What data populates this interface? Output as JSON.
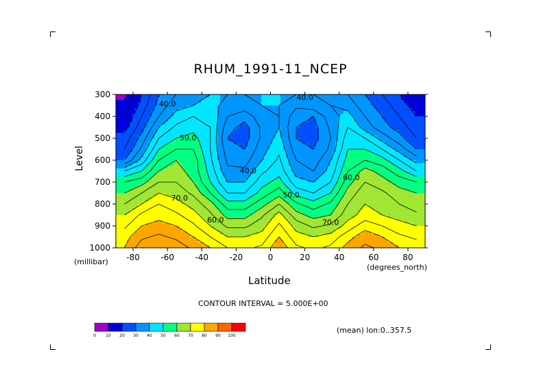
{
  "page": {
    "interval_text": "CONTOUR INTERVAL = 5.000E+00",
    "mean_text": "(mean) lon:0..357.5"
  },
  "chart_data": {
    "type": "heatmap",
    "title": "RHUM_1991-11_NCEP",
    "xlabel": "Latitude",
    "ylabel": "Level",
    "x_unit": "(degrees_north)",
    "y_unit": "(millibar)",
    "xlim": [
      -90,
      90
    ],
    "ylim": [
      1000,
      300
    ],
    "x_ticks": [
      -80,
      -60,
      -40,
      -20,
      0,
      20,
      40,
      60,
      80
    ],
    "x_tick_labels": [
      "-80",
      "-60",
      "-40",
      "-20",
      "0",
      "20",
      "40",
      "60",
      "80"
    ],
    "y_ticks": [
      300,
      400,
      500,
      600,
      700,
      800,
      900,
      1000
    ],
    "y_tick_labels": [
      "300",
      "400",
      "500",
      "600",
      "700",
      "800",
      "900",
      "1000"
    ],
    "x": [
      -85,
      -75,
      -65,
      -55,
      -45,
      -35,
      -25,
      -15,
      -5,
      5,
      15,
      25,
      35,
      45,
      55,
      65,
      75,
      85
    ],
    "y": [
      300,
      350,
      400,
      450,
      500,
      550,
      600,
      650,
      700,
      750,
      800,
      850,
      900,
      950,
      1000
    ],
    "z": [
      [
        8,
        20,
        30,
        35,
        38,
        40,
        40,
        40,
        40,
        40,
        40,
        40,
        38,
        35,
        30,
        25,
        20,
        15
      ],
      [
        12,
        22,
        32,
        38,
        40,
        42,
        38,
        38,
        40,
        40,
        36,
        38,
        40,
        38,
        32,
        28,
        22,
        18
      ],
      [
        15,
        25,
        35,
        42,
        45,
        44,
        35,
        32,
        38,
        40,
        32,
        30,
        38,
        42,
        35,
        30,
        25,
        20
      ],
      [
        18,
        28,
        40,
        46,
        48,
        45,
        32,
        28,
        36,
        40,
        30,
        28,
        36,
        45,
        38,
        32,
        28,
        22
      ],
      [
        22,
        32,
        45,
        50,
        52,
        45,
        30,
        28,
        36,
        42,
        30,
        28,
        35,
        48,
        45,
        38,
        32,
        25
      ],
      [
        25,
        36,
        50,
        55,
        55,
        45,
        32,
        30,
        38,
        44,
        32,
        30,
        36,
        50,
        50,
        45,
        38,
        30
      ],
      [
        30,
        42,
        55,
        60,
        58,
        46,
        34,
        33,
        40,
        46,
        35,
        32,
        40,
        52,
        55,
        52,
        45,
        38
      ],
      [
        45,
        50,
        60,
        62,
        58,
        48,
        36,
        36,
        44,
        48,
        38,
        35,
        42,
        55,
        62,
        58,
        52,
        45
      ],
      [
        55,
        58,
        65,
        65,
        60,
        50,
        40,
        40,
        48,
        52,
        42,
        40,
        45,
        58,
        65,
        62,
        58,
        55
      ],
      [
        60,
        65,
        70,
        68,
        64,
        55,
        45,
        45,
        52,
        58,
        48,
        45,
        50,
        62,
        68,
        66,
        62,
        60
      ],
      [
        65,
        70,
        75,
        72,
        68,
        62,
        52,
        52,
        58,
        65,
        56,
        52,
        56,
        65,
        70,
        68,
        65,
        62
      ],
      [
        70,
        76,
        78,
        76,
        72,
        66,
        58,
        58,
        64,
        72,
        62,
        58,
        60,
        68,
        72,
        70,
        68,
        66
      ],
      [
        74,
        80,
        82,
        80,
        76,
        70,
        64,
        64,
        68,
        76,
        68,
        64,
        66,
        72,
        78,
        75,
        72,
        70
      ],
      [
        78,
        84,
        86,
        84,
        80,
        75,
        70,
        70,
        72,
        80,
        72,
        70,
        72,
        78,
        83,
        80,
        76,
        74
      ],
      [
        80,
        88,
        90,
        88,
        84,
        80,
        75,
        74,
        76,
        84,
        76,
        74,
        76,
        82,
        86,
        84,
        80,
        78
      ]
    ],
    "contour_interval": 5,
    "contour_labels": [
      {
        "text": "40.0",
        "lat": -60,
        "lev": 355
      },
      {
        "text": "40.0",
        "lat": 20,
        "lev": 325
      },
      {
        "text": "50.0",
        "lat": -48,
        "lev": 510
      },
      {
        "text": "40.0",
        "lat": -13,
        "lev": 660
      },
      {
        "text": "50.0",
        "lat": 12,
        "lev": 770
      },
      {
        "text": "60.0",
        "lat": 47,
        "lev": 690
      },
      {
        "text": "70.0",
        "lat": -53,
        "lev": 785
      },
      {
        "text": "60.0",
        "lat": -32,
        "lev": 885
      },
      {
        "text": "70.0",
        "lat": 35,
        "lev": 895
      }
    ],
    "colorbar": {
      "levels": [
        "0",
        "10",
        "20",
        "30",
        "40",
        "50",
        "60",
        "70",
        "80",
        "90",
        "100"
      ],
      "colors": [
        "#a000c8",
        "#0000dc",
        "#0050ff",
        "#0096ff",
        "#00e6ff",
        "#00ff82",
        "#a0e632",
        "#ffff00",
        "#ffa500",
        "#ff6400",
        "#ff0000"
      ]
    }
  }
}
